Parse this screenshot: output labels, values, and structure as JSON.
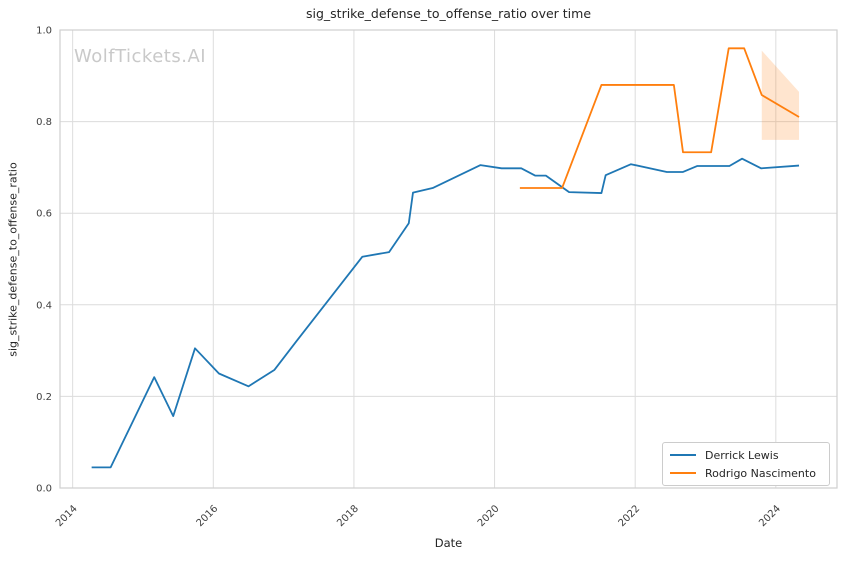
{
  "watermark": "WolfTickets.AI",
  "chart_data": {
    "type": "line",
    "title": "sig_strike_defense_to_offense_ratio over time",
    "xlabel": "Date",
    "ylabel": "sig_strike_defense_to_offense_ratio",
    "xlim": [
      2013.82,
      2024.87
    ],
    "ylim": [
      0.0,
      1.0
    ],
    "xticks": [
      2014,
      2016,
      2018,
      2020,
      2022,
      2024
    ],
    "xtick_labels": [
      "2014",
      "2016",
      "2018",
      "2020",
      "2022",
      "2024"
    ],
    "yticks": [
      0.0,
      0.2,
      0.4,
      0.6,
      0.8,
      1.0
    ],
    "ytick_labels": [
      "0.0",
      "0.2",
      "0.4",
      "0.6",
      "0.8",
      "1.0"
    ],
    "grid": true,
    "legend_position": "lower right",
    "colors": {
      "grid": "#dcdcdc",
      "spine": "#cfcfcf",
      "text": "#262626",
      "tick_text": "#404040",
      "watermark": "#c9c9c9"
    },
    "series": [
      {
        "name": "Derrick Lewis",
        "color": "#1f77b4",
        "x": [
          2014.27,
          2014.54,
          2015.16,
          2015.43,
          2015.74,
          2016.08,
          2016.5,
          2016.87,
          2017.18,
          2018.12,
          2018.5,
          2018.78,
          2018.84,
          2019.12,
          2019.8,
          2020.1,
          2020.38,
          2020.58,
          2020.73,
          2021.06,
          2021.52,
          2021.58,
          2021.94,
          2022.45,
          2022.68,
          2022.88,
          2023.34,
          2023.52,
          2023.79,
          2024.33
        ],
        "y": [
          0.045,
          0.045,
          0.242,
          0.157,
          0.305,
          0.25,
          0.222,
          0.258,
          0.32,
          0.505,
          0.515,
          0.578,
          0.645,
          0.655,
          0.705,
          0.698,
          0.698,
          0.682,
          0.682,
          0.646,
          0.644,
          0.683,
          0.707,
          0.69,
          0.69,
          0.703,
          0.703,
          0.719,
          0.698,
          0.704
        ]
      },
      {
        "name": "Rodrigo Nascimento",
        "color": "#ff7f0e",
        "x": [
          2020.36,
          2020.96,
          2021.52,
          2022.55,
          2022.68,
          2023.08,
          2023.33,
          2023.55,
          2023.8,
          2024.33
        ],
        "y": [
          0.655,
          0.655,
          0.88,
          0.88,
          0.733,
          0.733,
          0.96,
          0.96,
          0.858,
          0.81
        ]
      }
    ],
    "confidence_band": {
      "series": "Rodrigo Nascimento",
      "color": "#ff7f0e",
      "opacity": 0.2,
      "x": [
        2023.8,
        2024.33
      ],
      "upper": [
        0.955,
        0.865
      ],
      "lower": [
        0.76,
        0.76
      ]
    }
  }
}
